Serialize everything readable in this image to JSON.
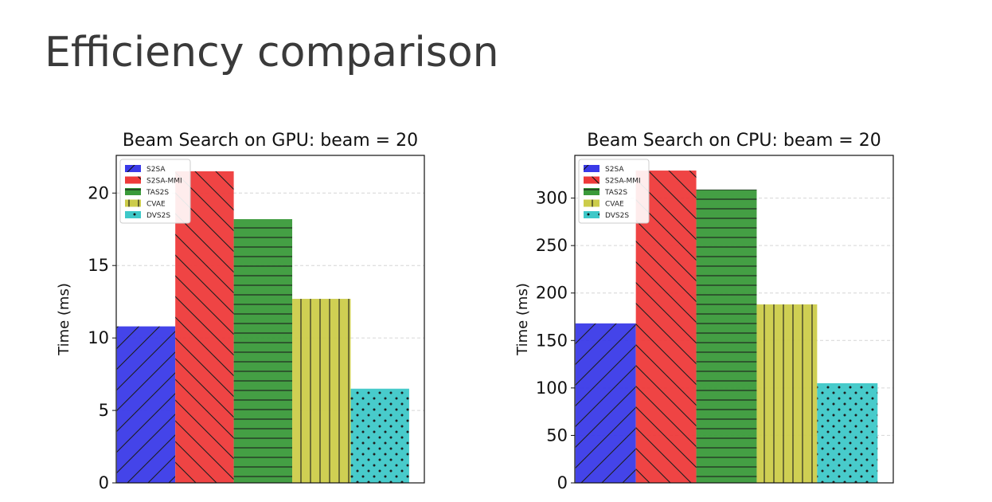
{
  "slide": {
    "title": "Efficiency comparison"
  },
  "chart_data": [
    {
      "type": "bar",
      "title": "Beam Search on GPU: beam = 20",
      "xlabel": "",
      "ylabel": "Time (ms)",
      "ylim": [
        0,
        22.6
      ],
      "yticks": [
        0,
        5,
        10,
        15,
        20
      ],
      "grid": true,
      "legend_position": "top-left",
      "categories": [
        "S2SA",
        "S2SA-MMI",
        "TAS2S",
        "CVAE",
        "DVS2S"
      ],
      "values": [
        10.8,
        21.5,
        18.2,
        12.7,
        6.5
      ],
      "colors": [
        "#3a3ae8",
        "#ee3a3a",
        "#3a9a3a",
        "#cccc4a",
        "#3ec8c8"
      ],
      "hatches": [
        "diag-up",
        "diag-down",
        "horizontal",
        "vertical",
        "dots"
      ]
    },
    {
      "type": "bar",
      "title": "Beam Search on CPU: beam = 20",
      "xlabel": "",
      "ylabel": "Time (ms)",
      "ylim": [
        0,
        345
      ],
      "yticks": [
        0,
        50,
        100,
        150,
        200,
        250,
        300
      ],
      "grid": true,
      "legend_position": "top-left",
      "categories": [
        "S2SA",
        "S2SA-MMI",
        "TAS2S",
        "CVAE",
        "DVS2S"
      ],
      "values": [
        168,
        329,
        309,
        188,
        105
      ],
      "colors": [
        "#3a3ae8",
        "#ee3a3a",
        "#3a9a3a",
        "#cccc4a",
        "#3ec8c8"
      ],
      "hatches": [
        "diag-up",
        "diag-down",
        "horizontal",
        "vertical",
        "dots"
      ]
    }
  ]
}
